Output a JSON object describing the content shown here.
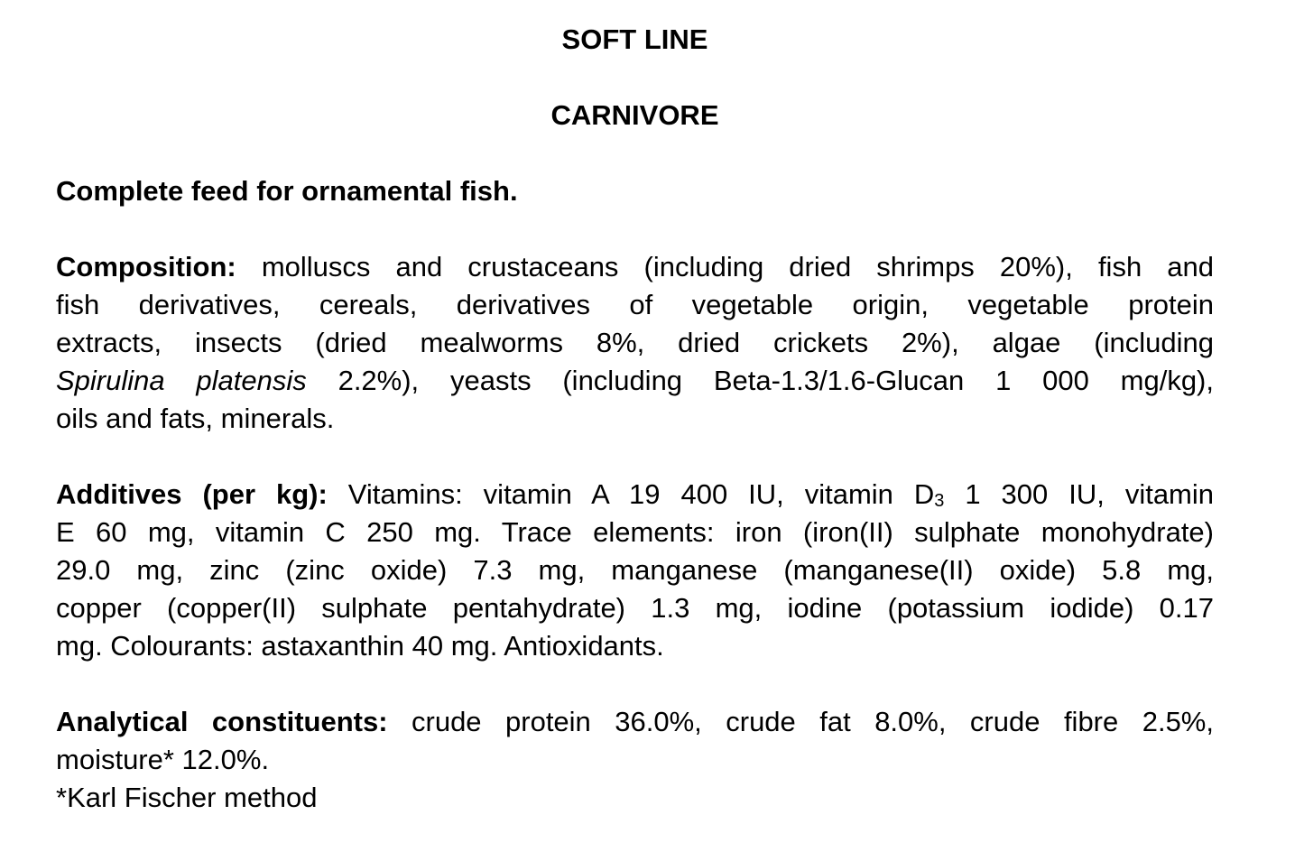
{
  "title": "SOFT LINE",
  "subtitle": "CARNIVORE",
  "intro": "Complete feed for ornamental fish.",
  "paragraphs": [
    {
      "name": "composition",
      "lines": [
        [
          {
            "t": "Composition:",
            "s": "b"
          },
          {
            "t": " molluscs and crustaceans (including dried shrimps 20%), fish and"
          }
        ],
        [
          {
            "t": "fish derivatives, cereals, derivatives of vegetable origin, vegetable protein"
          }
        ],
        [
          {
            "t": "extracts, insects (dried mealworms 8%, dried crickets 2%), algae (including"
          }
        ],
        [
          {
            "t": "Spirulina platensis",
            "s": "i"
          },
          {
            "t": " 2.2%), yeasts (including Beta-1.3/1.6-Glucan 1 000 mg/kg),"
          }
        ],
        [
          {
            "t": "oils and fats, minerals."
          }
        ]
      ]
    },
    {
      "name": "additives",
      "lines": [
        [
          {
            "t": "Additives (per kg):",
            "s": "b"
          },
          {
            "t": " Vitamins: vitamin A 19 400 IU, vitamin D"
          },
          {
            "t": "3",
            "s": "sub"
          },
          {
            "t": " 1 300 IU, vitamin"
          }
        ],
        [
          {
            "t": "E 60 mg, vitamin C 250 mg. Trace elements: iron (iron(II) sulphate monohydrate)"
          }
        ],
        [
          {
            "t": "29.0 mg, zinc (zinc oxide) 7.3 mg, manganese (manganese(II) oxide) 5.8 mg,"
          }
        ],
        [
          {
            "t": "copper (copper(II) sulphate pentahydrate) 1.3 mg, iodine (potassium iodide) 0.17"
          }
        ],
        [
          {
            "t": "mg. Colourants: astaxanthin 40 mg. Antioxidants."
          }
        ]
      ]
    },
    {
      "name": "analytical-constituents",
      "lines": [
        [
          {
            "t": "Analytical constituents:",
            "s": "b"
          },
          {
            "t": " crude protein 36.0%, crude fat 8.0%, crude fibre 2.5%,"
          }
        ],
        [
          {
            "t": "moisture* 12.0%."
          }
        ]
      ],
      "extra": "*Karl Fischer method"
    }
  ]
}
